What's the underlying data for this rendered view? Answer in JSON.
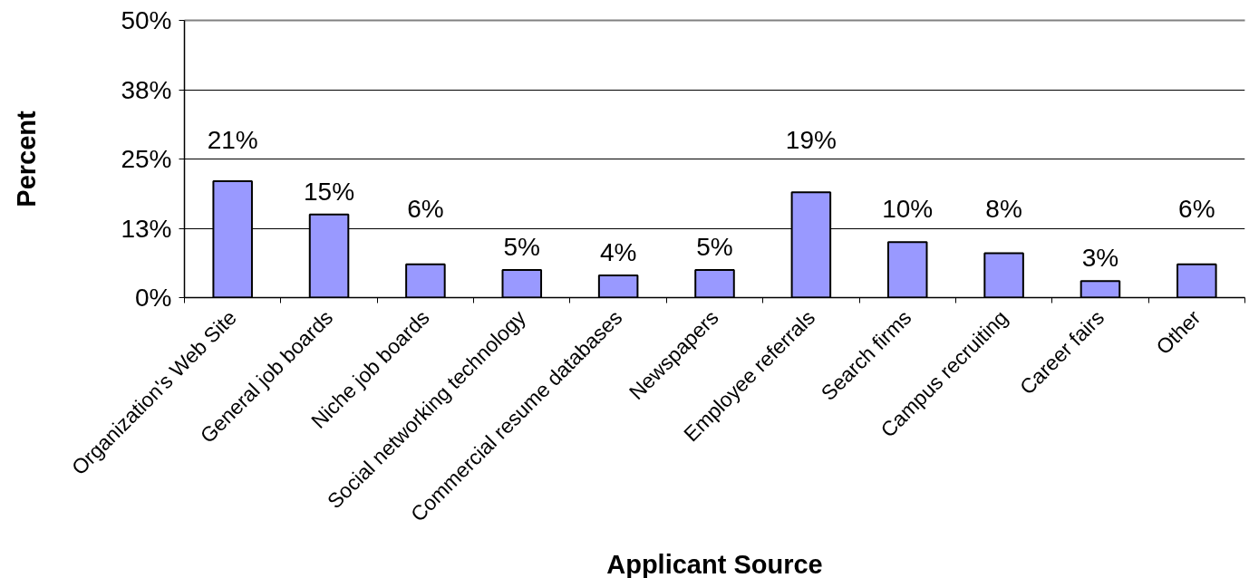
{
  "chart_data": {
    "type": "bar",
    "xlabel": "Applicant Source",
    "ylabel": "Percent",
    "categories": [
      "Organization's Web Site",
      "General job boards",
      "Niche job boards",
      "Social networking technology",
      "Commercial resume databases",
      "Newspapers",
      "Employee referrals",
      "Search firms",
      "Campus recruiting",
      "Career fairs",
      "Other"
    ],
    "values": [
      21,
      15,
      6,
      5,
      4,
      5,
      19,
      10,
      8,
      3,
      6
    ],
    "color": "#9999ff",
    "value_labels": [
      "21%",
      "15%",
      "6%",
      "5%",
      "4%",
      "5%",
      "19%",
      "10%",
      "8%",
      "3%",
      "6%"
    ],
    "ylim": [
      0,
      50
    ],
    "yticks": [
      {
        "value": 0,
        "label": "0%"
      },
      {
        "value": 12.5,
        "label": "13%"
      },
      {
        "value": 25,
        "label": "25%"
      },
      {
        "value": 37.5,
        "label": "38%"
      },
      {
        "value": 50,
        "label": "50%"
      }
    ],
    "grid": "y"
  }
}
